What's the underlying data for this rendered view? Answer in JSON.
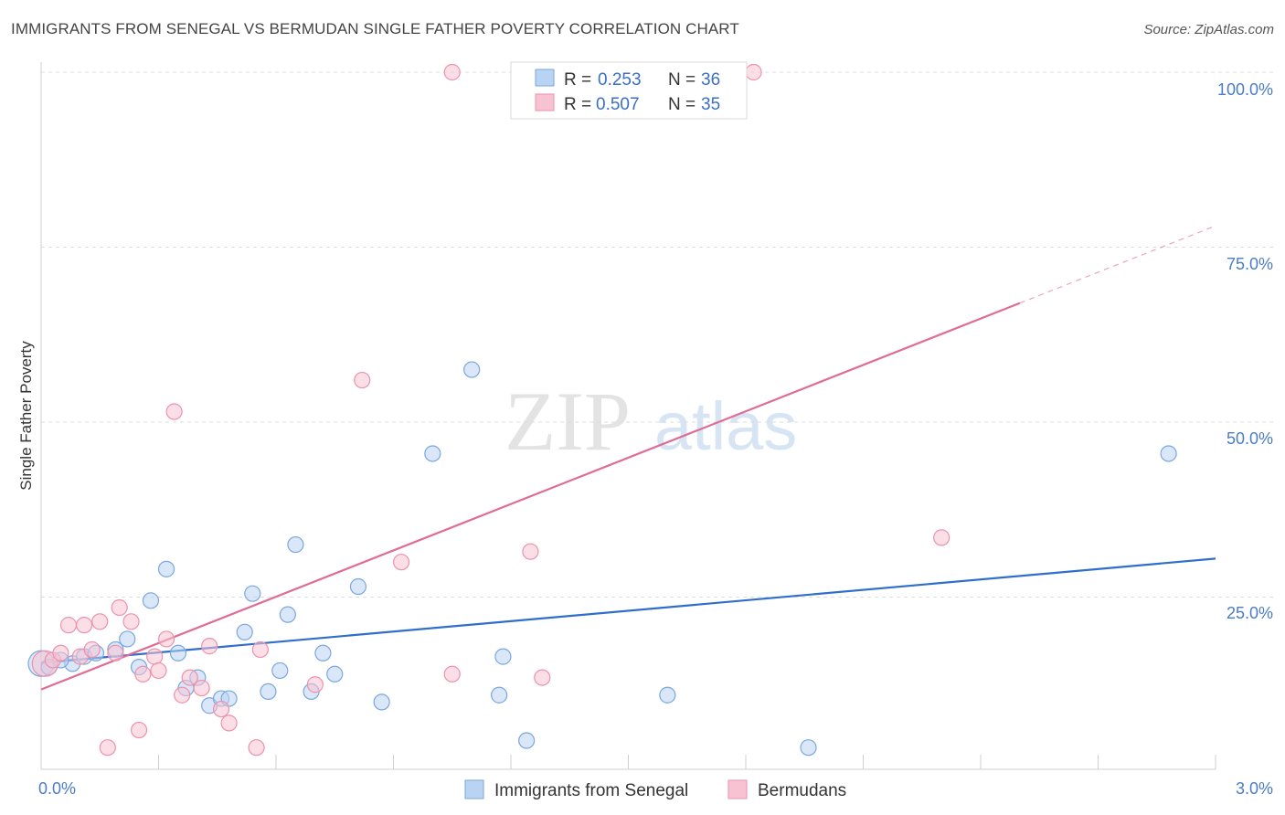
{
  "header": {
    "title": "IMMIGRANTS FROM SENEGAL VS BERMUDAN SINGLE FATHER POVERTY CORRELATION CHART",
    "source": "Source: ZipAtlas.com"
  },
  "watermark": {
    "zip": "ZIP",
    "atlas": "atlas"
  },
  "colors": {
    "blue_fill": "#b9d3f2",
    "blue_stroke": "#7aa7df",
    "blue_line": "#2f6fcb",
    "pink_fill": "#f7c3d2",
    "pink_stroke": "#ec92ad",
    "pink_line": "#e06b95"
  },
  "legend": {
    "rows": [
      {
        "r_label": "R = ",
        "r_value": "0.253",
        "n_label": "N = ",
        "n_value": "36"
      },
      {
        "r_label": "R = ",
        "r_value": "0.507",
        "n_label": "N = ",
        "n_value": "35"
      }
    ]
  },
  "chart_data": {
    "type": "scatter",
    "title": "IMMIGRANTS FROM SENEGAL VS BERMUDAN SINGLE FATHER POVERTY CORRELATION CHART",
    "xlabel": "",
    "ylabel": "Single Father Poverty",
    "xlim": [
      0,
      3.0
    ],
    "ylim": [
      0,
      102
    ],
    "x_tick_labels": [
      "0.0%",
      "3.0%"
    ],
    "y_ticks": [
      25,
      50,
      75,
      100
    ],
    "y_tick_labels": [
      "25.0%",
      "50.0%",
      "75.0%",
      "100.0%"
    ],
    "grid": true,
    "series": [
      {
        "name": "Immigrants from Senegal",
        "color": "#b9d3f2",
        "points": [
          [
            0.0,
            15.5
          ],
          [
            0.02,
            15.0
          ],
          [
            0.08,
            15.5
          ],
          [
            0.11,
            16.5
          ],
          [
            0.14,
            17.0
          ],
          [
            0.19,
            17.5
          ],
          [
            0.22,
            19.0
          ],
          [
            0.25,
            15.0
          ],
          [
            0.28,
            24.5
          ],
          [
            0.32,
            29.0
          ],
          [
            0.35,
            17.0
          ],
          [
            0.37,
            12.0
          ],
          [
            0.4,
            13.5
          ],
          [
            0.43,
            9.5
          ],
          [
            0.46,
            10.5
          ],
          [
            0.48,
            10.5
          ],
          [
            0.52,
            20.0
          ],
          [
            0.54,
            25.5
          ],
          [
            0.58,
            11.5
          ],
          [
            0.61,
            14.5
          ],
          [
            0.63,
            22.5
          ],
          [
            0.65,
            32.5
          ],
          [
            0.69,
            11.5
          ],
          [
            0.72,
            17.0
          ],
          [
            0.75,
            14.0
          ],
          [
            0.81,
            26.5
          ],
          [
            0.87,
            10.0
          ],
          [
            1.0,
            45.5
          ],
          [
            1.1,
            57.5
          ],
          [
            1.17,
            11.0
          ],
          [
            1.18,
            16.5
          ],
          [
            1.24,
            4.5
          ],
          [
            1.6,
            11.0
          ],
          [
            1.96,
            3.5
          ],
          [
            2.88,
            45.5
          ],
          [
            0.05,
            16.0
          ]
        ]
      },
      {
        "name": "Bermudans",
        "color": "#f7c3d2",
        "points": [
          [
            0.01,
            15.5
          ],
          [
            0.03,
            16.0
          ],
          [
            0.05,
            17.0
          ],
          [
            0.07,
            21.0
          ],
          [
            0.1,
            16.5
          ],
          [
            0.11,
            21.0
          ],
          [
            0.13,
            17.5
          ],
          [
            0.15,
            21.5
          ],
          [
            0.17,
            3.5
          ],
          [
            0.19,
            17.0
          ],
          [
            0.2,
            23.5
          ],
          [
            0.23,
            21.5
          ],
          [
            0.25,
            6.0
          ],
          [
            0.26,
            14.0
          ],
          [
            0.29,
            16.5
          ],
          [
            0.3,
            14.5
          ],
          [
            0.32,
            19.0
          ],
          [
            0.34,
            51.5
          ],
          [
            0.36,
            11.0
          ],
          [
            0.38,
            13.5
          ],
          [
            0.41,
            12.0
          ],
          [
            0.43,
            18.0
          ],
          [
            0.46,
            9.0
          ],
          [
            0.48,
            7.0
          ],
          [
            0.55,
            3.5
          ],
          [
            0.56,
            17.5
          ],
          [
            0.7,
            12.5
          ],
          [
            0.82,
            56.0
          ],
          [
            0.92,
            30.0
          ],
          [
            1.05,
            14.0
          ],
          [
            1.05,
            100.0
          ],
          [
            1.25,
            31.5
          ],
          [
            1.28,
            13.5
          ],
          [
            1.82,
            100.0
          ],
          [
            2.3,
            33.5
          ]
        ]
      }
    ],
    "trendlines": [
      {
        "series": "Immigrants from Senegal",
        "x": [
          0.0,
          3.0
        ],
        "y": [
          15.6,
          30.5
        ]
      },
      {
        "series": "Bermudans",
        "x": [
          0.0,
          2.5
        ],
        "y": [
          11.8,
          67.0
        ],
        "dashed_extension": [
          2.5,
          3.0
        ]
      }
    ]
  },
  "bottom_legend": {
    "items": [
      {
        "label": "Immigrants from Senegal"
      },
      {
        "label": "Bermudans"
      }
    ]
  }
}
